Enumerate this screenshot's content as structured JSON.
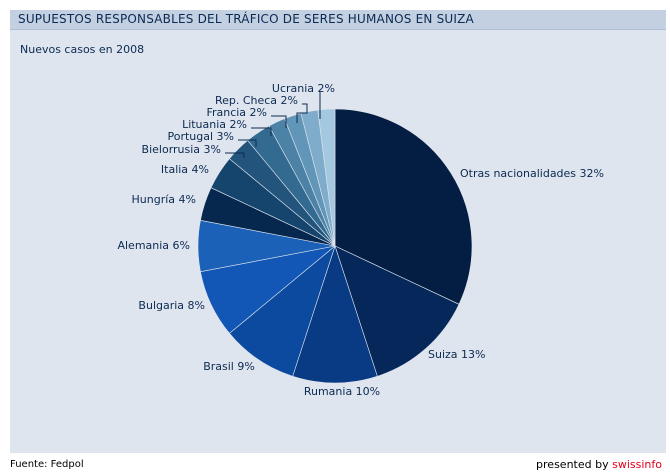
{
  "header": {
    "title": "SUPUESTOS RESPONSABLES DEL TRÁFICO DE SERES HUMANOS EN SUIZA",
    "subtitle": "Nuevos casos en 2008"
  },
  "footer": {
    "source": "Fuente: Fedpol",
    "presented_by": "presented by ",
    "brand": "swissinfo"
  },
  "chart_data": {
    "type": "pie",
    "title": "SUPUESTOS RESPONSABLES DEL TRÁFICO DE SERES HUMANOS EN SUIZA",
    "subtitle": "Nuevos casos en 2008",
    "unit": "%",
    "categories": [
      "Otras nacionalidades",
      "Suiza",
      "Rumania",
      "Brasil",
      "Bulgaria",
      "Alemania",
      "Hungría",
      "Italia",
      "Bielorrusia",
      "Portugal",
      "Lituania",
      "Francia",
      "Rep.  Checa",
      "Ucrania"
    ],
    "values": [
      32,
      13,
      10,
      9,
      8,
      6,
      4,
      4,
      3,
      3,
      2,
      2,
      2,
      2
    ],
    "labels": [
      "Otras nacionalidades 32%",
      "Suiza 13%",
      "Rumania 10%",
      "Brasil 9%",
      "Bulgaria 8%",
      "Alemania 6%",
      "Hungría 4%",
      "Italia 4%",
      "Bielorrusia 3%",
      "Portugal 3%",
      "Lituania 2%",
      "Francia 2%",
      "Rep.  Checa 2%",
      "Ucrania 2%"
    ],
    "colors": [
      "#041d43",
      "#06275a",
      "#093a84",
      "#0c4a9f",
      "#1257b5",
      "#1a61b7",
      "#06284e",
      "#15446d",
      "#22547c",
      "#336a90",
      "#4b82a6",
      "#6296b8",
      "#7eacca",
      "#a3c8df"
    ]
  }
}
